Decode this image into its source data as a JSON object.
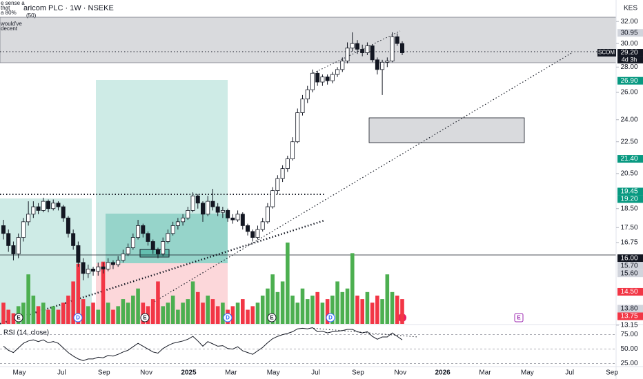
{
  "chart_data": [
    {
      "type": "candlestick",
      "title": "aricom PLC · 1W · NSEKE",
      "currency": "KES",
      "symbol": "SCOM",
      "countdown": "4d 3h",
      "notes": [
        "e sense a",
        "that",
        "a 80%",
        "(50)",
        "would've",
        "decent"
      ],
      "log_scale": true,
      "ylim": [
        13.2,
        32.4
      ],
      "yticks": [
        {
          "value": 32,
          "label": "32.00"
        },
        {
          "value": 30,
          "label": "30.00"
        },
        {
          "value": 28,
          "label": "28.00"
        },
        {
          "value": 26,
          "label": "26.00"
        },
        {
          "value": 24,
          "label": "24.00"
        },
        {
          "value": 22.5,
          "label": "22.50"
        },
        {
          "value": 20.5,
          "label": "20.50"
        },
        {
          "value": 18.5,
          "label": "18.50"
        },
        {
          "value": 17.5,
          "label": "17.50"
        },
        {
          "value": 16.75,
          "label": "16.75"
        },
        {
          "value": 13.15,
          "label": "13.15"
        }
      ],
      "price_tags": [
        {
          "value": 30.95,
          "label": "30.95",
          "color": "#d1d4dc"
        },
        {
          "value": 29.2,
          "label": "29.20",
          "color": "#131722"
        },
        {
          "value": 26.9,
          "label": "26.90",
          "color": "#089981"
        },
        {
          "value": 21.4,
          "label": "21.40",
          "color": "#089981"
        },
        {
          "value": 19.45,
          "label": "19.45",
          "color": "#089981"
        },
        {
          "value": 19.2,
          "label": "19.20",
          "color": "#089981"
        },
        {
          "value": 16,
          "label": "16.00",
          "color": "#131722"
        },
        {
          "value": 15.7,
          "label": "15.70",
          "color": "#d1d4dc"
        },
        {
          "value": 15.6,
          "label": "15.60",
          "color": "#d1d4dc"
        },
        {
          "value": 14.5,
          "label": "14.50",
          "color": "#f23645"
        },
        {
          "value": 13.8,
          "label": "13.80",
          "color": "#d1d4dc"
        },
        {
          "value": 13.75,
          "label": "13.75",
          "color": "#f23645"
        }
      ],
      "x_labels": [
        "May",
        "Jul",
        "Sep",
        "Nov",
        "2025",
        "Mar",
        "May",
        "Jul",
        "Sep",
        "Nov",
        "2026",
        "Mar",
        "May",
        "Jul",
        "Sep"
      ],
      "events": [
        "E",
        "D",
        "E",
        "D",
        "E",
        "D",
        "E"
      ],
      "up_color": "#ffffff",
      "down_color": "#131722",
      "volume_up_color": "#4caf50",
      "volume_down_color": "#f23645",
      "ohlc": [
        [
          17.6,
          17.9,
          16.9,
          17.2
        ],
        [
          17.2,
          17.4,
          16.3,
          16.6
        ],
        [
          16.6,
          16.8,
          15.9,
          16.2
        ],
        [
          16.2,
          17.2,
          16.0,
          17.0
        ],
        [
          17.0,
          18.0,
          16.8,
          17.8
        ],
        [
          17.8,
          18.9,
          17.6,
          18.2
        ],
        [
          18.2,
          18.9,
          18.0,
          18.6
        ],
        [
          18.6,
          18.8,
          18.2,
          18.4
        ],
        [
          18.4,
          19.1,
          18.3,
          18.9
        ],
        [
          18.9,
          19.0,
          18.3,
          18.5
        ],
        [
          18.5,
          19.0,
          18.4,
          18.8
        ],
        [
          18.8,
          18.9,
          18.4,
          18.6
        ],
        [
          18.6,
          18.7,
          17.8,
          18.0
        ],
        [
          18.0,
          18.1,
          17.0,
          17.2
        ],
        [
          17.2,
          17.4,
          16.4,
          16.6
        ],
        [
          16.6,
          16.8,
          15.6,
          15.8
        ],
        [
          15.8,
          16.0,
          15.0,
          15.3
        ],
        [
          15.3,
          15.7,
          15.1,
          15.5
        ],
        [
          15.5,
          15.6,
          15.2,
          15.4
        ],
        [
          15.4,
          15.8,
          15.2,
          15.6
        ],
        [
          15.6,
          15.8,
          15.3,
          15.5
        ],
        [
          15.5,
          16.0,
          15.4,
          15.8
        ],
        [
          15.8,
          15.9,
          15.5,
          15.7
        ],
        [
          15.7,
          16.1,
          15.6,
          15.9
        ],
        [
          15.9,
          16.4,
          15.8,
          16.2
        ],
        [
          16.2,
          16.7,
          16.1,
          16.5
        ],
        [
          16.5,
          17.2,
          16.4,
          17.0
        ],
        [
          17.0,
          17.9,
          16.9,
          17.6
        ],
        [
          17.6,
          17.7,
          17.0,
          17.2
        ],
        [
          17.2,
          17.3,
          16.6,
          16.8
        ],
        [
          16.8,
          16.9,
          16.2,
          16.4
        ],
        [
          16.4,
          16.5,
          16.0,
          16.2
        ],
        [
          16.2,
          17.0,
          16.1,
          16.8
        ],
        [
          16.8,
          17.4,
          16.7,
          17.2
        ],
        [
          17.2,
          17.8,
          17.1,
          17.6
        ],
        [
          17.6,
          18.0,
          17.4,
          17.8
        ],
        [
          17.8,
          18.2,
          17.6,
          18.0
        ],
        [
          18.0,
          18.6,
          17.9,
          18.4
        ],
        [
          18.4,
          19.4,
          18.3,
          19.2
        ],
        [
          19.2,
          19.3,
          18.5,
          18.8
        ],
        [
          18.8,
          18.9,
          17.8,
          18.2
        ],
        [
          18.2,
          19.2,
          18.1,
          18.9
        ],
        [
          18.9,
          19.6,
          18.4,
          18.6
        ],
        [
          18.6,
          18.8,
          18.1,
          18.3
        ],
        [
          18.3,
          18.6,
          18.0,
          18.4
        ],
        [
          18.4,
          18.5,
          17.8,
          18.0
        ],
        [
          18.0,
          18.2,
          17.7,
          17.9
        ],
        [
          17.9,
          18.4,
          17.8,
          18.2
        ],
        [
          18.2,
          18.3,
          17.4,
          17.6
        ],
        [
          17.6,
          17.7,
          17.1,
          17.3
        ],
        [
          17.3,
          17.4,
          16.8,
          17.0
        ],
        [
          17.0,
          17.6,
          16.9,
          17.4
        ],
        [
          17.4,
          18.0,
          17.3,
          17.8
        ],
        [
          17.8,
          18.8,
          17.7,
          18.6
        ],
        [
          18.6,
          19.7,
          18.5,
          19.5
        ],
        [
          19.5,
          20.4,
          19.3,
          20.2
        ],
        [
          20.2,
          21.0,
          20.0,
          20.8
        ],
        [
          20.8,
          21.6,
          20.6,
          21.4
        ],
        [
          21.4,
          22.8,
          21.3,
          22.5
        ],
        [
          22.5,
          24.8,
          22.4,
          24.5
        ],
        [
          24.5,
          25.8,
          24.3,
          25.5
        ],
        [
          25.5,
          26.5,
          25.2,
          26.2
        ],
        [
          26.2,
          27.8,
          26.0,
          27.5
        ],
        [
          27.5,
          27.7,
          26.5,
          26.8
        ],
        [
          26.8,
          27.4,
          26.5,
          27.2
        ],
        [
          27.2,
          27.4,
          26.6,
          26.9
        ],
        [
          26.9,
          27.6,
          26.7,
          27.4
        ],
        [
          27.4,
          28.0,
          27.2,
          27.8
        ],
        [
          27.8,
          28.8,
          27.6,
          28.5
        ],
        [
          28.5,
          30.1,
          28.3,
          29.6
        ],
        [
          29.6,
          31.0,
          29.3,
          30.0
        ],
        [
          30.0,
          30.3,
          29.1,
          29.5
        ],
        [
          29.5,
          29.9,
          28.9,
          29.2
        ],
        [
          29.2,
          30.1,
          29.0,
          29.8
        ],
        [
          29.8,
          29.9,
          28.4,
          28.6
        ],
        [
          28.6,
          28.8,
          27.4,
          27.8
        ],
        [
          27.8,
          28.6,
          25.8,
          28.4
        ],
        [
          28.4,
          28.8,
          28.0,
          28.5
        ],
        [
          28.5,
          31.0,
          28.4,
          30.6
        ],
        [
          30.6,
          30.9,
          29.8,
          30.0
        ],
        [
          30.0,
          30.2,
          29.0,
          29.2
        ]
      ],
      "volume": [
        30,
        20,
        15,
        25,
        30,
        70,
        40,
        25,
        30,
        20,
        25,
        20,
        30,
        40,
        60,
        85,
        35,
        25,
        30,
        20,
        88,
        30,
        20,
        25,
        35,
        30,
        40,
        50,
        30,
        25,
        35,
        60,
        25,
        30,
        40,
        20,
        30,
        35,
        60,
        45,
        30,
        40,
        35,
        25,
        30,
        20,
        25,
        30,
        35,
        20,
        25,
        30,
        40,
        50,
        70,
        45,
        60,
        115,
        40,
        30,
        50,
        35,
        40,
        45,
        30,
        35,
        40,
        60,
        45,
        50,
        100,
        40,
        35,
        45,
        30,
        40,
        35,
        70,
        45,
        40,
        35
      ]
    },
    {
      "type": "line",
      "title": "RSI (14, close)",
      "color": "#131722",
      "ylim": [
        15,
        90
      ],
      "yticks": [
        {
          "value": 75,
          "label": "75.00"
        },
        {
          "value": 50,
          "label": "50.00"
        },
        {
          "value": 25,
          "label": "25.00"
        }
      ],
      "values": [
        55,
        48,
        44,
        52,
        60,
        64,
        66,
        63,
        66,
        61,
        63,
        60,
        52,
        44,
        38,
        33,
        30,
        33,
        33,
        36,
        35,
        39,
        38,
        41,
        45,
        48,
        54,
        60,
        55,
        50,
        45,
        43,
        51,
        56,
        60,
        62,
        64,
        67,
        72,
        64,
        55,
        63,
        59,
        55,
        56,
        51,
        50,
        54,
        47,
        44,
        41,
        47,
        53,
        61,
        68,
        72,
        75,
        77,
        80,
        85,
        86,
        85,
        87,
        80,
        81,
        78,
        80,
        81,
        82,
        84,
        84,
        80,
        78,
        80,
        72,
        67,
        71,
        71,
        78,
        72,
        66
      ]
    }
  ]
}
